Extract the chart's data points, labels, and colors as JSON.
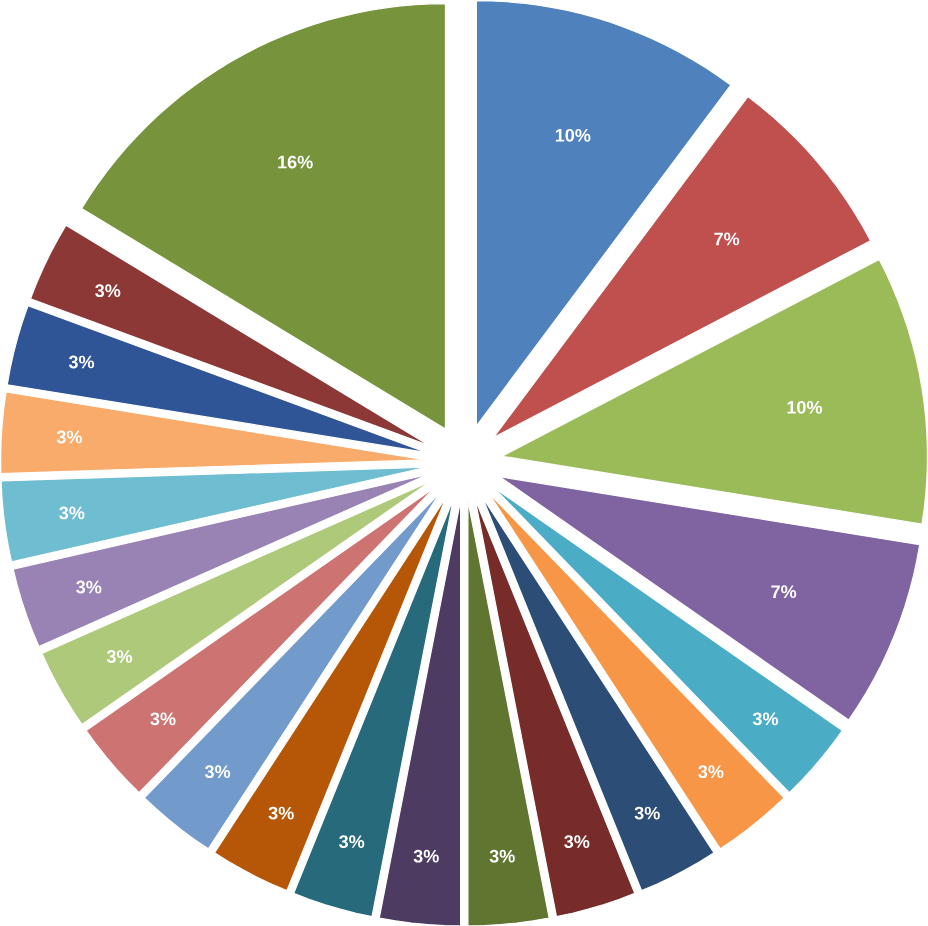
{
  "chart_data": {
    "type": "pie",
    "categories": [
      null,
      null,
      null,
      null,
      null,
      null,
      null,
      null,
      null,
      null,
      null,
      null,
      null,
      null,
      null,
      null,
      null,
      null,
      null,
      null,
      null
    ],
    "values": [
      10,
      7,
      10,
      7,
      3,
      3,
      3,
      3,
      3,
      3,
      3,
      3,
      3,
      3,
      3,
      3,
      3,
      3,
      3,
      3,
      16
    ],
    "value_labels": [
      "10%",
      "7%",
      "10%",
      "7%",
      "3%",
      "3%",
      "3%",
      "3%",
      "3%",
      "3%",
      "3%",
      "3%",
      "3%",
      "3%",
      "3%",
      "3%",
      "3%",
      "3%",
      "3%",
      "3%",
      "16%"
    ],
    "colors": [
      "#4f81bd",
      "#c0504d",
      "#9bbb59",
      "#8064a2",
      "#4bacc6",
      "#f79646",
      "#2c4d75",
      "#772c2a",
      "#5f7530",
      "#4d3b62",
      "#276a7c",
      "#b65708",
      "#729aca",
      "#cd7371",
      "#afc97a",
      "#9983b5",
      "#6fbdd1",
      "#f9ab6b",
      "#2f5597",
      "#8c3836",
      "#77933c"
    ]
  }
}
